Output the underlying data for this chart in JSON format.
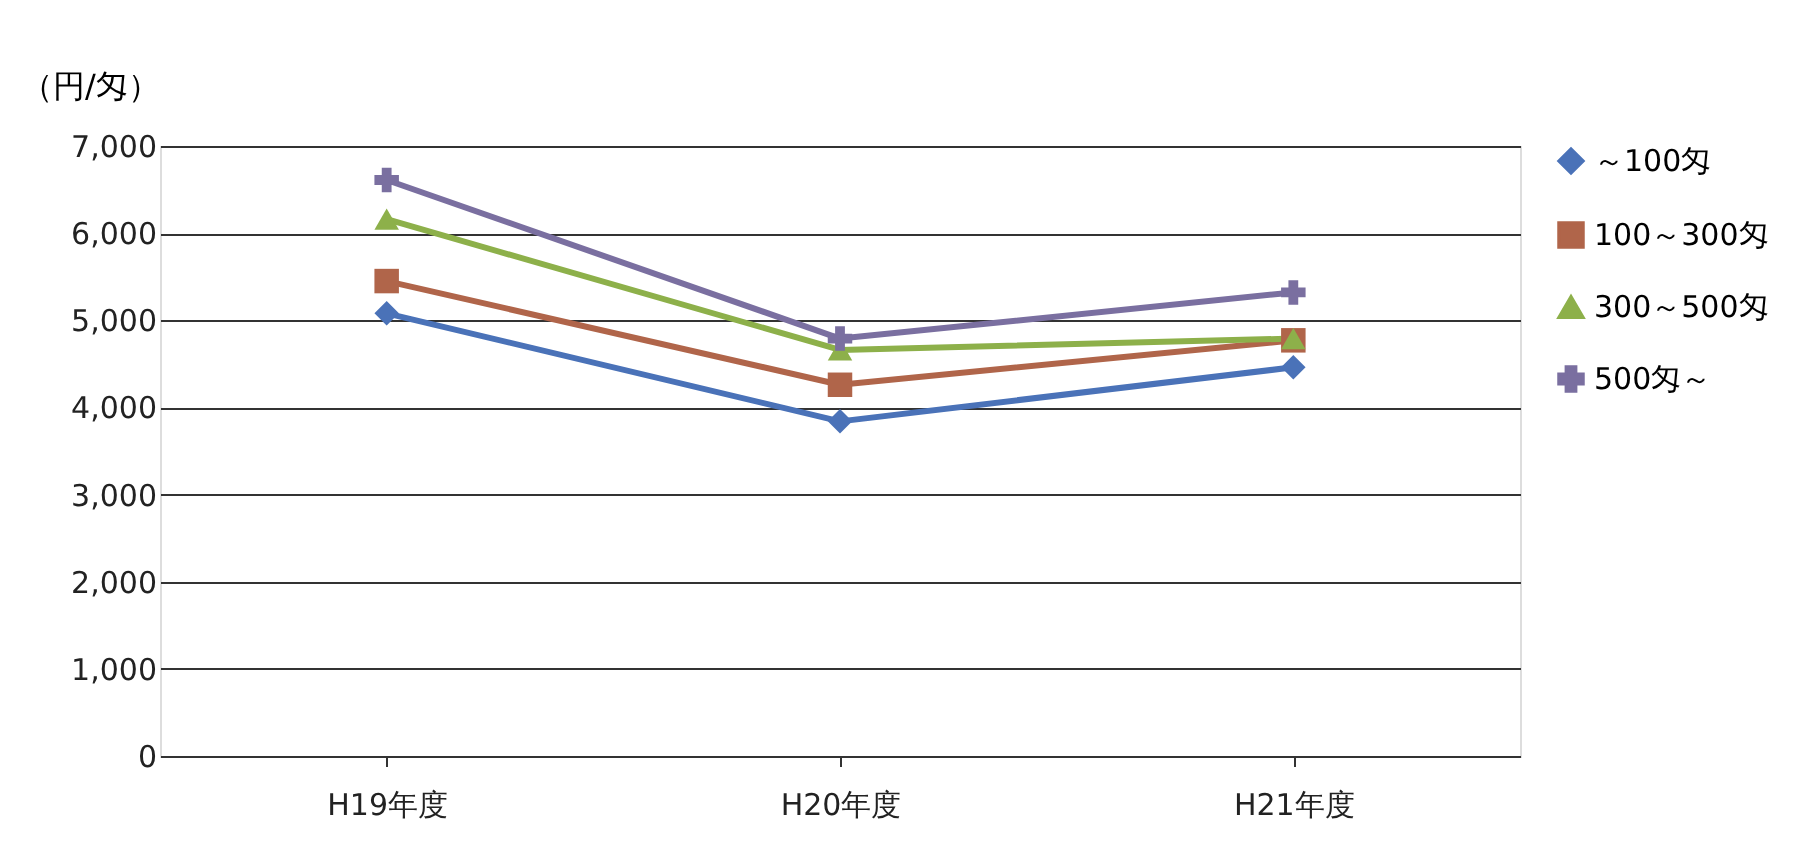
{
  "chart_data": {
    "type": "line",
    "ylabel": "（円/匁）",
    "categories": [
      "H19年度",
      "H20年度",
      "H21年度"
    ],
    "ylim": [
      0,
      7000
    ],
    "yticks": [
      0,
      {
        "value": 1000,
        "label": "1,000"
      },
      {
        "value": 2000,
        "label": "2,000"
      },
      {
        "value": 3000,
        "label": "3,000"
      },
      {
        "value": 4000,
        "label": "4,000"
      },
      {
        "value": 5000,
        "label": "5,000"
      },
      {
        "value": 6000,
        "label": "6,000"
      },
      {
        "value": 7000,
        "label": "7,000"
      }
    ],
    "grid": "y",
    "legend": "right",
    "line_style": "solid",
    "series": [
      {
        "name": "～100匁",
        "color": "#4a72b8",
        "marker": "diamond",
        "values": [
          5080,
          3840,
          4460
        ]
      },
      {
        "name": "100～300匁",
        "color": "#b0654a",
        "marker": "square",
        "values": [
          5450,
          4260,
          4770
        ]
      },
      {
        "name": "300～500匁",
        "color": "#8db04a",
        "marker": "triangle",
        "values": [
          6160,
          4660,
          4790
        ]
      },
      {
        "name": "500匁～",
        "color": "#7a6fa0",
        "marker": "cross",
        "values": [
          6610,
          4790,
          5320
        ]
      }
    ]
  }
}
